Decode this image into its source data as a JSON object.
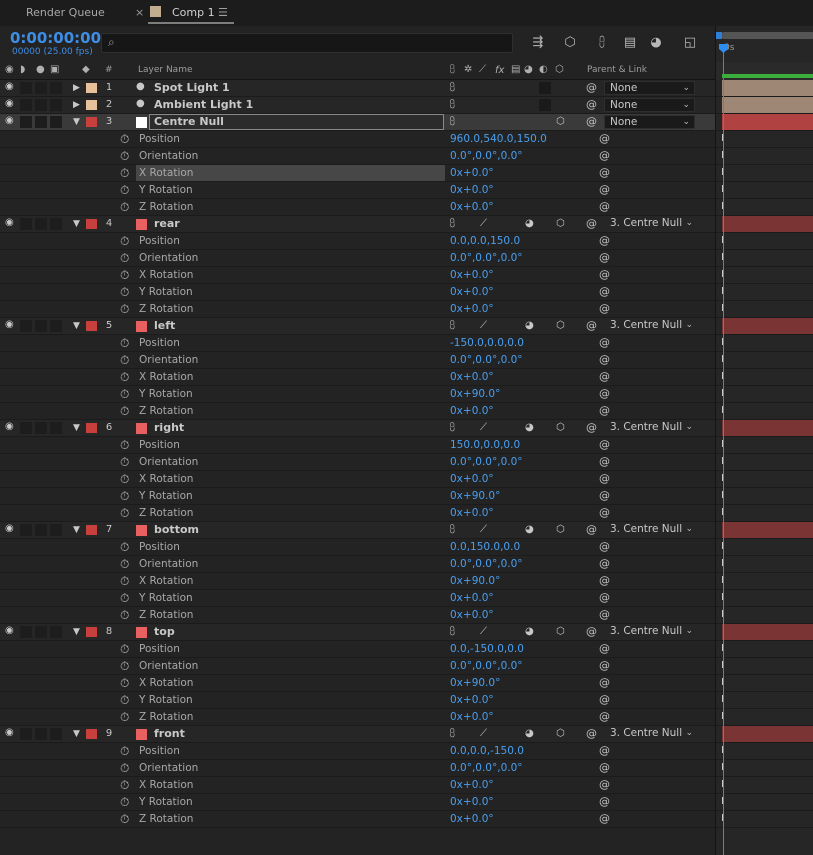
{
  "tabs": {
    "render_queue": "Render Queue",
    "comp": "Comp 1",
    "close_glyph": "×",
    "menu_glyph": "☰"
  },
  "toolbar": {
    "timecode": "0:00:00:00",
    "fps": "00000 (25.00 fps)",
    "search_placeholder": ""
  },
  "columns": {
    "num": "#",
    "layer_name": "Layer Name",
    "fx": "fx",
    "parent_link": "Parent & Link"
  },
  "timeline": {
    "ruler_label": "0s"
  },
  "colors": {
    "accent": "#3d8ee6",
    "light_label": "#e8c19a",
    "null_label": "#c8403c",
    "solid_label": "#c8403c",
    "solid_swatch": "#e86060",
    "light_bar": "#9e8774",
    "solid_bar": "#7a3434",
    "null_bar": "#b04242"
  },
  "layers": [
    {
      "num": "1",
      "name": "Spot Light 1",
      "type": "light",
      "parent": "None",
      "expanded": false,
      "props": []
    },
    {
      "num": "2",
      "name": "Ambient Light 1",
      "type": "light",
      "parent": "None",
      "expanded": false,
      "props": []
    },
    {
      "num": "3",
      "name": "Centre Null",
      "type": "null",
      "parent": "None",
      "expanded": true,
      "selected": true,
      "props": [
        {
          "name": "Position",
          "value": "960.0,540.0,150.0"
        },
        {
          "name": "Orientation",
          "value": "0.0°,0.0°,0.0°"
        },
        {
          "name": "X Rotation",
          "value": "0x+0.0°",
          "highlight": true
        },
        {
          "name": "Y Rotation",
          "value": "0x+0.0°"
        },
        {
          "name": "Z Rotation",
          "value": "0x+0.0°"
        }
      ]
    },
    {
      "num": "4",
      "name": "rear",
      "type": "solid",
      "parent": "3. Centre Null",
      "expanded": true,
      "props": [
        {
          "name": "Position",
          "value": "0.0,0.0,150.0"
        },
        {
          "name": "Orientation",
          "value": "0.0°,0.0°,0.0°"
        },
        {
          "name": "X Rotation",
          "value": "0x+0.0°"
        },
        {
          "name": "Y Rotation",
          "value": "0x+0.0°"
        },
        {
          "name": "Z Rotation",
          "value": "0x+0.0°"
        }
      ]
    },
    {
      "num": "5",
      "name": "left",
      "type": "solid",
      "parent": "3. Centre Null",
      "expanded": true,
      "props": [
        {
          "name": "Position",
          "value": "-150.0,0.0,0.0"
        },
        {
          "name": "Orientation",
          "value": "0.0°,0.0°,0.0°"
        },
        {
          "name": "X Rotation",
          "value": "0x+0.0°"
        },
        {
          "name": "Y Rotation",
          "value": "0x+90.0°"
        },
        {
          "name": "Z Rotation",
          "value": "0x+0.0°"
        }
      ]
    },
    {
      "num": "6",
      "name": "right",
      "type": "solid",
      "parent": "3. Centre Null",
      "expanded": true,
      "props": [
        {
          "name": "Position",
          "value": "150.0,0.0,0.0"
        },
        {
          "name": "Orientation",
          "value": "0.0°,0.0°,0.0°"
        },
        {
          "name": "X Rotation",
          "value": "0x+0.0°"
        },
        {
          "name": "Y Rotation",
          "value": "0x+90.0°"
        },
        {
          "name": "Z Rotation",
          "value": "0x+0.0°"
        }
      ]
    },
    {
      "num": "7",
      "name": "bottom",
      "type": "solid",
      "parent": "3. Centre Null",
      "expanded": true,
      "props": [
        {
          "name": "Position",
          "value": "0.0,150.0,0.0"
        },
        {
          "name": "Orientation",
          "value": "0.0°,0.0°,0.0°"
        },
        {
          "name": "X Rotation",
          "value": "0x+90.0°"
        },
        {
          "name": "Y Rotation",
          "value": "0x+0.0°"
        },
        {
          "name": "Z Rotation",
          "value": "0x+0.0°"
        }
      ]
    },
    {
      "num": "8",
      "name": "top",
      "type": "solid",
      "parent": "3. Centre Null",
      "expanded": true,
      "props": [
        {
          "name": "Position",
          "value": "0.0,-150.0,0.0"
        },
        {
          "name": "Orientation",
          "value": "0.0°,0.0°,0.0°"
        },
        {
          "name": "X Rotation",
          "value": "0x+90.0°"
        },
        {
          "name": "Y Rotation",
          "value": "0x+0.0°"
        },
        {
          "name": "Z Rotation",
          "value": "0x+0.0°"
        }
      ]
    },
    {
      "num": "9",
      "name": "front",
      "type": "solid",
      "parent": "3. Centre Null",
      "expanded": true,
      "props": [
        {
          "name": "Position",
          "value": "0.0,0.0,-150.0"
        },
        {
          "name": "Orientation",
          "value": "0.0°,0.0°,0.0°"
        },
        {
          "name": "X Rotation",
          "value": "0x+0.0°"
        },
        {
          "name": "Y Rotation",
          "value": "0x+0.0°"
        },
        {
          "name": "Z Rotation",
          "value": "0x+0.0°"
        }
      ]
    }
  ]
}
